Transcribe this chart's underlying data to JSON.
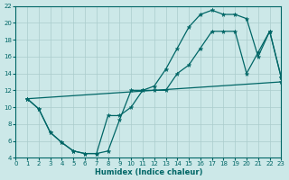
{
  "xlabel": "Humidex (Indice chaleur)",
  "background_color": "#cce8e8",
  "grid_color": "#aacccc",
  "line_color": "#006666",
  "xlim": [
    0,
    23
  ],
  "ylim": [
    4,
    22
  ],
  "xticks": [
    0,
    1,
    2,
    3,
    4,
    5,
    6,
    7,
    8,
    9,
    10,
    11,
    12,
    13,
    14,
    15,
    16,
    17,
    18,
    19,
    20,
    21,
    22,
    23
  ],
  "yticks": [
    4,
    6,
    8,
    10,
    12,
    14,
    16,
    18,
    20,
    22
  ],
  "curve1_x": [
    1,
    2,
    3,
    4,
    5,
    6,
    7,
    8,
    9,
    10,
    11,
    12,
    13,
    14,
    15,
    16,
    17,
    18,
    19,
    20,
    21,
    22,
    23
  ],
  "curve1_y": [
    11,
    9.8,
    7.0,
    5.8,
    4.8,
    4.5,
    4.5,
    4.8,
    8.5,
    12,
    12,
    12.5,
    14.5,
    17,
    19.5,
    21,
    21.5,
    21,
    21,
    20.5,
    16,
    19,
    13.5
  ],
  "curve2_x": [
    1,
    2,
    3,
    4,
    5,
    6,
    7,
    8,
    9,
    10,
    11,
    12,
    13,
    14,
    15,
    16,
    17,
    18,
    19,
    20,
    21,
    22,
    23
  ],
  "curve2_y": [
    11,
    9.8,
    7.0,
    5.8,
    4.8,
    4.5,
    4.5,
    9.0,
    9.0,
    10,
    12,
    12,
    12,
    14,
    15,
    17,
    19,
    19,
    19,
    14,
    16.5,
    19,
    13.5
  ],
  "curve3_x": [
    1,
    23
  ],
  "curve3_y": [
    11,
    13
  ]
}
